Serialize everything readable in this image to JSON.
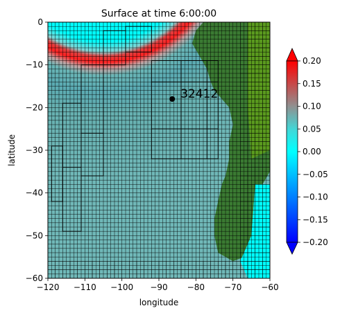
{
  "chart_data": {
    "type": "heatmap",
    "title": "Surface at time 6:00:00",
    "xlabel": "longitude",
    "ylabel": "latitude",
    "xlim": [
      -120,
      -60
    ],
    "ylim": [
      -60,
      0
    ],
    "xticks": [
      -120,
      -110,
      -100,
      -90,
      -80,
      -70,
      -60
    ],
    "yticks": [
      0,
      -10,
      -20,
      -30,
      -40,
      -50,
      -60
    ],
    "xtick_labels": [
      "−120",
      "−110",
      "−100",
      "−90",
      "−80",
      "−70",
      "−60"
    ],
    "ytick_labels": [
      "0",
      "−10",
      "−20",
      "−30",
      "−40",
      "−50",
      "−60"
    ],
    "colorbar": {
      "min": -0.2,
      "max": 0.2,
      "extend": "both",
      "ticks": [
        0.2,
        0.15,
        0.1,
        0.05,
        0.0,
        -0.05,
        -0.1,
        -0.15,
        -0.2
      ],
      "tick_labels": [
        "0.20",
        "0.15",
        "0.10",
        "0.05",
        "0.00",
        "−0.05",
        "−0.10",
        "−0.15",
        "−0.20"
      ],
      "colors": [
        "#0000ff",
        "#00ffff",
        "#ff0000"
      ]
    },
    "gauge": {
      "label": "32412",
      "lon": -86.4,
      "lat": -18.0
    },
    "land_colors": [
      "#3a7a32",
      "#5a9a1e"
    ],
    "ocean_color": "#00ffff",
    "wavefront": {
      "center_lon": -73,
      "center_lat": 17,
      "radius_deg": 50
    }
  }
}
